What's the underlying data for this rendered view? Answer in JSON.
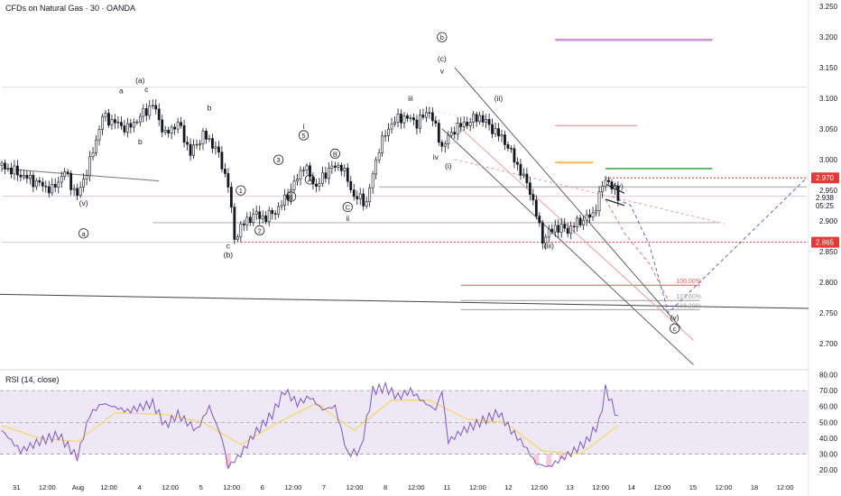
{
  "header": {
    "title": "CFDs on Natural Gas · 30 · OANDA",
    "rsi_title": "RSI (14, close)"
  },
  "colors": {
    "candle": "#131722",
    "rsi_line": "#7e57c2",
    "rsi_ma": "#f5d86b",
    "rsi_band": "#ede7f6",
    "price_tag": "#e53935",
    "target_purple": "#ce93d8",
    "level_red": "#ef9a9a",
    "level_orange": "#ffb74d",
    "level_green": "#66bb6a"
  },
  "chart_data": [
    {
      "type": "candlestick",
      "title": "CFDs on Natural Gas · 30 · OANDA",
      "price_axis": {
        "ticks": [
          "3.250",
          "3.200",
          "3.150",
          "3.100",
          "3.050",
          "3.000",
          "2.950",
          "2.900",
          "2.850",
          "2.800",
          "2.750",
          "2.700"
        ],
        "range": [
          2.66,
          3.26
        ]
      },
      "time_axis": {
        "labels": [
          "31",
          "12:00",
          "Aug",
          "12:00",
          "4",
          "12:00",
          "5",
          "12:00",
          "6",
          "12:00",
          "7",
          "12:00",
          "8",
          "12:00",
          "11",
          "12:00",
          "12",
          "12:00",
          "13",
          "12:00",
          "14",
          "12:00",
          "15",
          "12:00",
          "18",
          "12:00"
        ]
      },
      "price_tags": [
        {
          "value": 2.97,
          "label": "2.970",
          "kind": "current",
          "color": "#e53935"
        },
        {
          "value": 2.938,
          "label": "2.938",
          "kind": "plain"
        },
        {
          "value": 2.925,
          "label": "05:25",
          "kind": "countdown"
        },
        {
          "value": 2.865,
          "label": "2.865",
          "kind": "low",
          "color": "#e53935"
        }
      ],
      "price_path": [
        {
          "t": 0,
          "p": 2.99
        },
        {
          "t": 4,
          "p": 2.97
        },
        {
          "t": 8,
          "p": 2.95
        },
        {
          "t": 10,
          "p": 2.98
        },
        {
          "t": 12,
          "p": 2.94
        },
        {
          "t": 14,
          "p": 2.995
        },
        {
          "t": 16,
          "p": 3.07
        },
        {
          "t": 20,
          "p": 3.05
        },
        {
          "t": 24,
          "p": 3.09
        },
        {
          "t": 26,
          "p": 3.04
        },
        {
          "t": 28,
          "p": 3.06
        },
        {
          "t": 30,
          "p": 3.01
        },
        {
          "t": 32,
          "p": 3.04
        },
        {
          "t": 34,
          "p": 3.02
        },
        {
          "t": 36,
          "p": 2.96
        },
        {
          "t": 37,
          "p": 2.87
        },
        {
          "t": 38,
          "p": 2.89
        },
        {
          "t": 40,
          "p": 2.91
        },
        {
          "t": 42,
          "p": 2.905
        },
        {
          "t": 44,
          "p": 2.92
        },
        {
          "t": 46,
          "p": 2.95
        },
        {
          "t": 48,
          "p": 2.99
        },
        {
          "t": 50,
          "p": 2.955
        },
        {
          "t": 52,
          "p": 2.985
        },
        {
          "t": 54,
          "p": 2.99
        },
        {
          "t": 56,
          "p": 2.94
        },
        {
          "t": 58,
          "p": 2.93
        },
        {
          "t": 60,
          "p": 3.02
        },
        {
          "t": 62,
          "p": 3.06
        },
        {
          "t": 64,
          "p": 3.07
        },
        {
          "t": 66,
          "p": 3.06
        },
        {
          "t": 68,
          "p": 3.08
        },
        {
          "t": 70,
          "p": 3.02
        },
        {
          "t": 72,
          "p": 3.05
        },
        {
          "t": 74,
          "p": 3.06
        },
        {
          "t": 76,
          "p": 3.07
        },
        {
          "t": 78,
          "p": 3.05
        },
        {
          "t": 80,
          "p": 3.03
        },
        {
          "t": 82,
          "p": 2.99
        },
        {
          "t": 84,
          "p": 2.95
        },
        {
          "t": 86,
          "p": 2.87
        },
        {
          "t": 88,
          "p": 2.89
        },
        {
          "t": 90,
          "p": 2.885
        },
        {
          "t": 92,
          "p": 2.9
        },
        {
          "t": 94,
          "p": 2.91
        },
        {
          "t": 96,
          "p": 2.97
        },
        {
          "t": 98,
          "p": 2.94
        }
      ],
      "wave_labels": [
        {
          "text": "(v)",
          "t": 13,
          "p": 2.925
        },
        {
          "text": "a",
          "t": 13,
          "p": 2.875,
          "circle": true
        },
        {
          "text": "(a)",
          "t": 22,
          "p": 3.125
        },
        {
          "text": "a",
          "t": 19,
          "p": 3.108
        },
        {
          "text": "c",
          "t": 23,
          "p": 3.11
        },
        {
          "text": "b",
          "t": 22,
          "p": 3.025
        },
        {
          "text": "b",
          "t": 33,
          "p": 3.08
        },
        {
          "text": "c",
          "t": 36,
          "p": 2.855
        },
        {
          "text": "(b)",
          "t": 36,
          "p": 2.84
        },
        {
          "text": "1",
          "t": 38,
          "p": 2.945,
          "circle": true
        },
        {
          "text": "2",
          "t": 41,
          "p": 2.88,
          "circle": true
        },
        {
          "text": "3",
          "t": 44,
          "p": 2.995,
          "circle": true
        },
        {
          "text": "4",
          "t": 46,
          "p": 2.935,
          "circle": true
        },
        {
          "text": "5",
          "t": 48,
          "p": 3.035,
          "circle": true
        },
        {
          "text": "i",
          "t": 48,
          "p": 3.05
        },
        {
          "text": "A",
          "t": 49,
          "p": 2.963,
          "circle": true
        },
        {
          "text": "B",
          "t": 53,
          "p": 3.005,
          "circle": true
        },
        {
          "text": "C",
          "t": 55,
          "p": 2.918,
          "circle": true
        },
        {
          "text": "ii",
          "t": 55,
          "p": 2.9
        },
        {
          "text": "iii",
          "t": 65,
          "p": 3.095
        },
        {
          "text": "b",
          "t": 70,
          "p": 3.195,
          "circle": true
        },
        {
          "text": "(c)",
          "t": 70,
          "p": 3.16
        },
        {
          "text": "v",
          "t": 70,
          "p": 3.14
        },
        {
          "text": "iv",
          "t": 69,
          "p": 3.0
        },
        {
          "text": "(i)",
          "t": 71,
          "p": 2.985
        },
        {
          "text": "(ii)",
          "t": 79,
          "p": 3.095
        },
        {
          "text": "(iii)",
          "t": 87,
          "p": 2.855
        },
        {
          "text": "(iv)",
          "t": 98,
          "p": 2.952
        },
        {
          "text": "(v)",
          "t": 107,
          "p": 2.738
        },
        {
          "text": "c",
          "t": 107,
          "p": 2.72,
          "circle": true
        }
      ],
      "fib_labels": [
        {
          "text": "100.00%",
          "p": 2.795
        },
        {
          "text": "123.60%",
          "p": 2.77
        },
        {
          "text": "138.20%",
          "p": 2.755
        }
      ]
    },
    {
      "type": "line",
      "title": "RSI (14, close)",
      "y_axis": {
        "ticks": [
          "80.00",
          "70.00",
          "60.00",
          "50.00",
          "40.00",
          "30.00",
          "20.00"
        ],
        "range": [
          15,
          82
        ]
      },
      "bands": {
        "upper": 70,
        "middle": 50,
        "lower": 30
      },
      "rsi": [
        {
          "t": 0,
          "v": 45
        },
        {
          "t": 3,
          "v": 32
        },
        {
          "t": 6,
          "v": 38
        },
        {
          "t": 9,
          "v": 42
        },
        {
          "t": 12,
          "v": 28
        },
        {
          "t": 14,
          "v": 55
        },
        {
          "t": 16,
          "v": 62
        },
        {
          "t": 20,
          "v": 57
        },
        {
          "t": 24,
          "v": 62
        },
        {
          "t": 26,
          "v": 48
        },
        {
          "t": 28,
          "v": 55
        },
        {
          "t": 31,
          "v": 45
        },
        {
          "t": 33,
          "v": 60
        },
        {
          "t": 35,
          "v": 40
        },
        {
          "t": 36,
          "v": 22
        },
        {
          "t": 38,
          "v": 30
        },
        {
          "t": 40,
          "v": 42
        },
        {
          "t": 43,
          "v": 55
        },
        {
          "t": 45,
          "v": 70
        },
        {
          "t": 47,
          "v": 62
        },
        {
          "t": 49,
          "v": 66
        },
        {
          "t": 51,
          "v": 58
        },
        {
          "t": 53,
          "v": 60
        },
        {
          "t": 55,
          "v": 30
        },
        {
          "t": 57,
          "v": 32
        },
        {
          "t": 59,
          "v": 70
        },
        {
          "t": 61,
          "v": 72
        },
        {
          "t": 63,
          "v": 66
        },
        {
          "t": 65,
          "v": 70
        },
        {
          "t": 67,
          "v": 63
        },
        {
          "t": 69,
          "v": 58
        },
        {
          "t": 70,
          "v": 70
        },
        {
          "t": 71,
          "v": 38
        },
        {
          "t": 73,
          "v": 44
        },
        {
          "t": 75,
          "v": 48
        },
        {
          "t": 77,
          "v": 52
        },
        {
          "t": 79,
          "v": 56
        },
        {
          "t": 81,
          "v": 45
        },
        {
          "t": 83,
          "v": 36
        },
        {
          "t": 85,
          "v": 24
        },
        {
          "t": 87,
          "v": 22
        },
        {
          "t": 89,
          "v": 27
        },
        {
          "t": 91,
          "v": 32
        },
        {
          "t": 93,
          "v": 38
        },
        {
          "t": 95,
          "v": 50
        },
        {
          "t": 96,
          "v": 71
        },
        {
          "t": 97,
          "v": 62
        },
        {
          "t": 98,
          "v": 52
        }
      ],
      "rsi_ma": [
        {
          "t": 0,
          "v": 48
        },
        {
          "t": 6,
          "v": 40
        },
        {
          "t": 12,
          "v": 38
        },
        {
          "t": 18,
          "v": 56
        },
        {
          "t": 26,
          "v": 55
        },
        {
          "t": 32,
          "v": 50
        },
        {
          "t": 38,
          "v": 36
        },
        {
          "t": 44,
          "v": 50
        },
        {
          "t": 50,
          "v": 62
        },
        {
          "t": 56,
          "v": 45
        },
        {
          "t": 62,
          "v": 64
        },
        {
          "t": 68,
          "v": 64
        },
        {
          "t": 74,
          "v": 52
        },
        {
          "t": 80,
          "v": 50
        },
        {
          "t": 86,
          "v": 32
        },
        {
          "t": 92,
          "v": 30
        },
        {
          "t": 98,
          "v": 48
        }
      ]
    }
  ]
}
